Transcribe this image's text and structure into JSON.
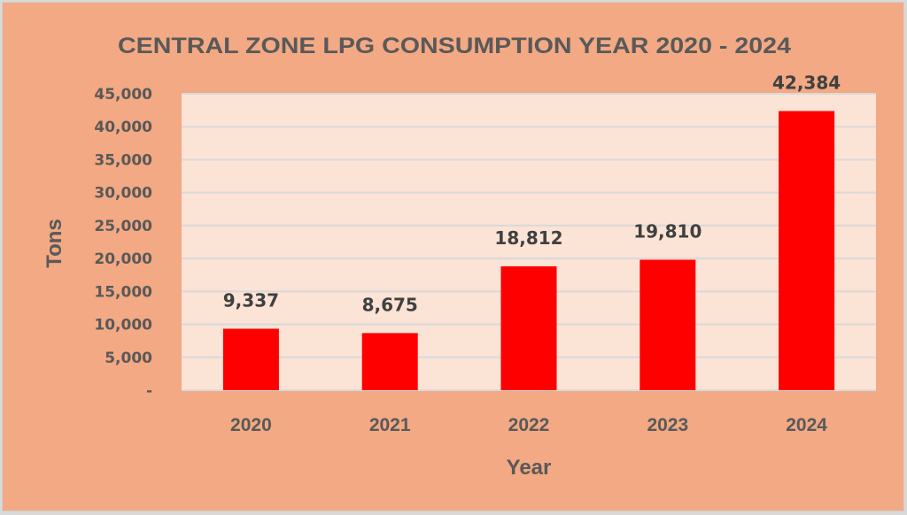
{
  "chart_data": {
    "type": "bar",
    "title": "CENTRAL ZONE LPG CONSUMPTION  YEAR 2020 - 2024",
    "xlabel": "Year",
    "ylabel": "Tons",
    "categories": [
      "2020",
      "2021",
      "2022",
      "2023",
      "2024"
    ],
    "values": [
      9337,
      8675,
      18812,
      19810,
      42384
    ],
    "data_labels": [
      "9,337",
      "8,675",
      "18,812",
      "19,810",
      "42,384"
    ],
    "ylim": [
      0,
      45000
    ],
    "yticks": [
      0,
      5000,
      10000,
      15000,
      20000,
      25000,
      30000,
      35000,
      40000,
      45000
    ],
    "ytick_labels": [
      "-",
      "5,000",
      "10,000",
      "15,000",
      "20,000",
      "25,000",
      "30,000",
      "35,000",
      "40,000",
      "45,000"
    ],
    "grid": true,
    "legend": "none",
    "colors": {
      "bar": "#ff0000",
      "background": "#f2a984",
      "plot_background": "#fbe3d6",
      "gridline": "#d9d9d9",
      "text": "#595959",
      "data_label": "#404040"
    }
  }
}
